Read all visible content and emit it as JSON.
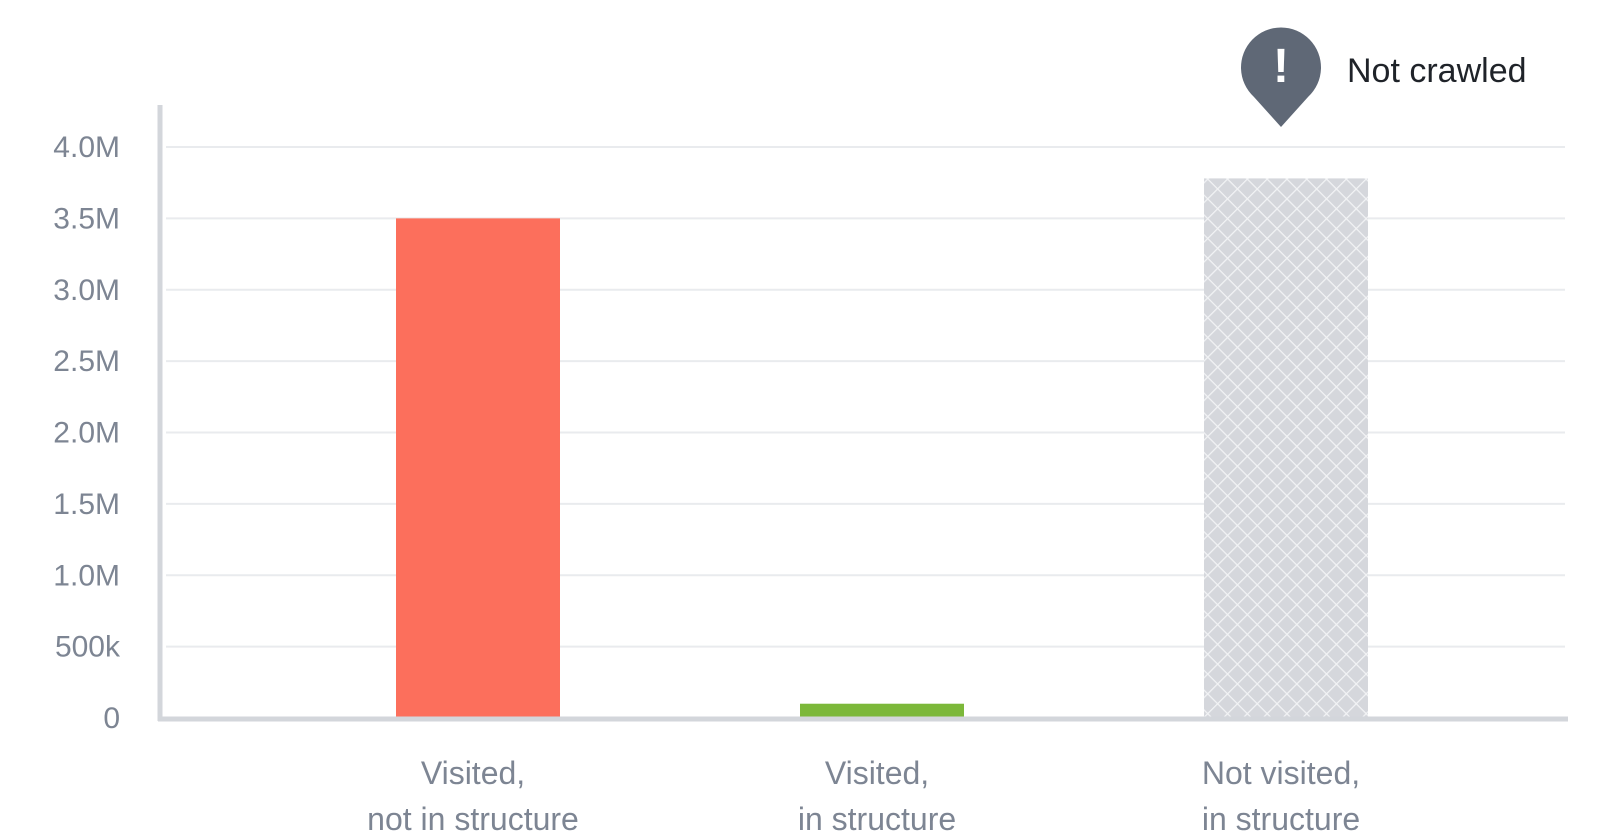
{
  "chart_data": {
    "type": "bar",
    "categories": [
      [
        "Visited,",
        "not in structure"
      ],
      [
        "Visited,",
        "in structure"
      ],
      [
        "Not visited,",
        "in structure"
      ]
    ],
    "values": [
      3500000,
      100000,
      3780000
    ],
    "bar_colors": [
      "#fc6f5c",
      "#7cb83a",
      "#d5d7dc"
    ],
    "bar_pattern": [
      null,
      null,
      "crosshatch"
    ],
    "ylim": [
      0,
      4000000
    ],
    "yticks": [
      {
        "value": 0,
        "label": "0"
      },
      {
        "value": 500000,
        "label": "500k"
      },
      {
        "value": 1000000,
        "label": "1.0M"
      },
      {
        "value": 1500000,
        "label": "1.5M"
      },
      {
        "value": 2000000,
        "label": "2.0M"
      },
      {
        "value": 2500000,
        "label": "2.5M"
      },
      {
        "value": 3000000,
        "label": "3.0M"
      },
      {
        "value": 3500000,
        "label": "3.5M"
      },
      {
        "value": 4000000,
        "label": "4.0M"
      }
    ],
    "grid": true,
    "annotation": {
      "category_index": 2,
      "icon": "exclamation-pin-icon",
      "mark": "!",
      "text": "Not crawled"
    },
    "colors": {
      "grid": "#e9ebee",
      "axis": "#d3d6db",
      "ticks": "#7d8593",
      "pin": "#5f6876"
    }
  }
}
